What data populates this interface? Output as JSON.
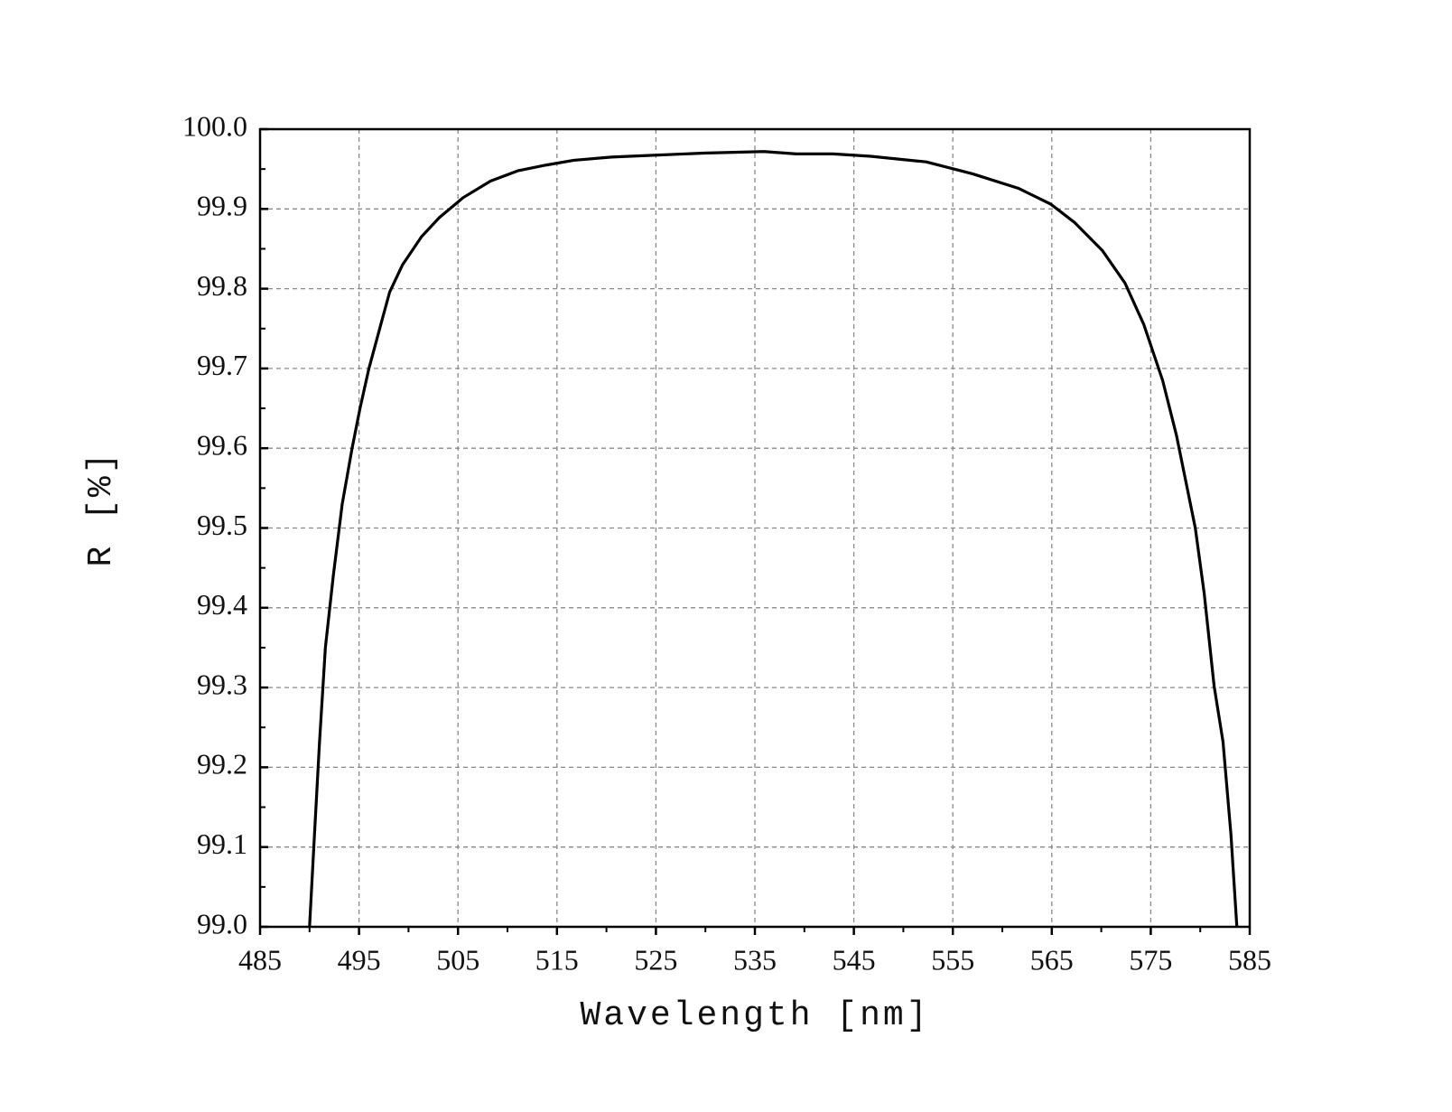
{
  "chart_data": {
    "type": "line",
    "xlabel": "Wavelength [nm]",
    "ylabel": "R [%]",
    "xlim": [
      485,
      585
    ],
    "xticks": [
      485,
      495,
      505,
      515,
      525,
      535,
      545,
      555,
      565,
      575,
      585
    ],
    "ylim": [
      99,
      100
    ],
    "yticks": [
      {
        "value": 99,
        "label": "99.0"
      },
      99.1,
      99.2,
      99.3,
      99.4,
      99.5,
      99.6,
      99.7,
      99.8,
      99.9,
      {
        "value": 100,
        "label": "100.0"
      }
    ],
    "grid": true,
    "minor_ticks": true,
    "series": [
      {
        "color": "#000000",
        "x": [
          490.0,
          490.5,
          491.0,
          491.6,
          492.4,
          493.3,
          494.3,
          495.1,
          496.0,
          497.2,
          498.1,
          499.4,
          501.3,
          503.1,
          505.5,
          508.3,
          511.1,
          513.9,
          516.7,
          520.5,
          524.2,
          529.8,
          535.9,
          539.2,
          542.9,
          546.7,
          552.3,
          557.0,
          561.6,
          564.9,
          567.3,
          570.1,
          572.4,
          574.3,
          576.2,
          577.6,
          579.5,
          580.4,
          581.4,
          582.3,
          583.1,
          583.7
        ],
        "values": [
          99.0,
          99.116,
          99.23,
          99.35,
          99.44,
          99.53,
          99.6,
          99.65,
          99.7,
          99.755,
          99.796,
          99.83,
          99.865,
          99.889,
          99.914,
          99.935,
          99.948,
          99.955,
          99.961,
          99.965,
          99.967,
          99.97,
          99.972,
          99.969,
          99.969,
          99.966,
          99.959,
          99.944,
          99.926,
          99.906,
          99.883,
          99.848,
          99.807,
          99.755,
          99.685,
          99.616,
          99.5,
          99.418,
          99.302,
          99.232,
          99.116,
          99.0
        ]
      }
    ]
  }
}
